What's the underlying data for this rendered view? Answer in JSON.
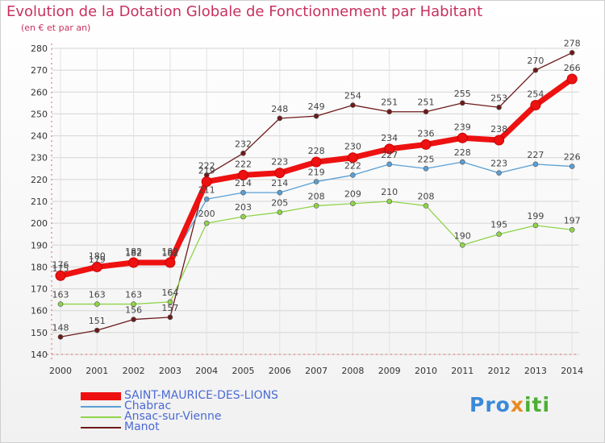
{
  "chart_data": {
    "type": "line",
    "title": "Evolution de la Dotation Globale de Fonctionnement par Habitant",
    "subtitle": "(en € et par an)",
    "xlabel": "",
    "ylabel": "",
    "x": [
      "2000",
      "2001",
      "2002",
      "2003",
      "2004",
      "2005",
      "2006",
      "2007",
      "2008",
      "2009",
      "2010",
      "2011",
      "2012",
      "2013",
      "2014"
    ],
    "ylim": [
      140,
      280
    ],
    "yticks": [
      140,
      150,
      160,
      170,
      180,
      190,
      200,
      210,
      220,
      230,
      240,
      250,
      260,
      270,
      280
    ],
    "grid": true,
    "legend_position": "bottom-left",
    "series": [
      {
        "name": "Manot",
        "color": "#6e1a1a",
        "values": [
          148,
          151,
          156,
          157,
          222,
          232,
          248,
          249,
          254,
          251,
          251,
          255,
          253,
          270,
          278
        ]
      },
      {
        "name": "Ansac-sur-Vienne",
        "color": "#8fd44a",
        "values": [
          163,
          163,
          163,
          164,
          200,
          203,
          205,
          208,
          209,
          210,
          208,
          190,
          195,
          199,
          197
        ]
      },
      {
        "name": "Chabrac",
        "color": "#5a9fd4",
        "values": [
          175,
          179,
          182,
          182,
          211,
          214,
          214,
          219,
          222,
          227,
          225,
          228,
          223,
          227,
          226
        ]
      },
      {
        "name": "SAINT-MAURICE-DES-LIONS",
        "color": "#ee1111",
        "values": [
          176,
          180,
          182,
          182,
          219,
          222,
          223,
          228,
          230,
          234,
          236,
          239,
          238,
          254,
          266
        ]
      }
    ]
  },
  "legend": {
    "items": [
      {
        "label": "SAINT-MAURICE-DES-LIONS",
        "color": "#ee1111"
      },
      {
        "label": "Chabrac",
        "color": "#5a9fd4"
      },
      {
        "label": "Ansac-sur-Vienne",
        "color": "#8fd44a"
      },
      {
        "label": "Manot",
        "color": "#6e1a1a"
      }
    ]
  },
  "logo": {
    "p1": "Pro",
    "p2": "x",
    "p3": "iti"
  }
}
